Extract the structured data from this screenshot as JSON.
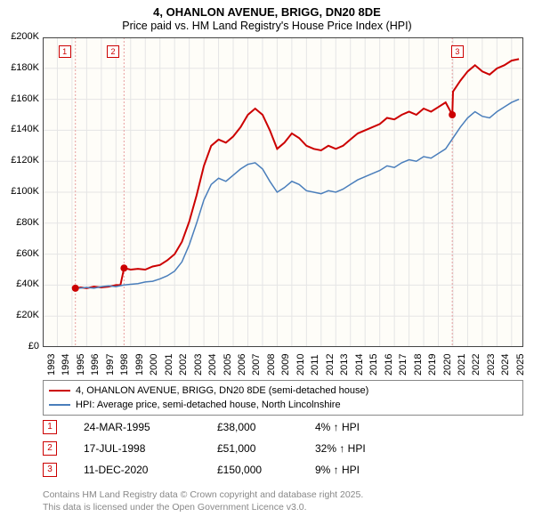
{
  "title": "4, OHANLON AVENUE, BRIGG, DN20 8DE",
  "subtitle": "Price paid vs. HM Land Registry's House Price Index (HPI)",
  "chart": {
    "type": "line",
    "background_color": "#fefdf8",
    "grid_color": "#e5e5e5",
    "axis_color": "#444444",
    "xlim": [
      1993,
      2025.8
    ],
    "ylim": [
      0,
      200000
    ],
    "ytick_step": 20000,
    "yticks": [
      "£0",
      "£20K",
      "£40K",
      "£60K",
      "£80K",
      "£100K",
      "£120K",
      "£140K",
      "£160K",
      "£180K",
      "£200K"
    ],
    "xticks": [
      1993,
      1994,
      1995,
      1996,
      1997,
      1998,
      1999,
      2000,
      2001,
      2002,
      2003,
      2004,
      2005,
      2006,
      2007,
      2008,
      2009,
      2010,
      2011,
      2012,
      2013,
      2014,
      2015,
      2016,
      2017,
      2018,
      2019,
      2020,
      2021,
      2022,
      2023,
      2024,
      2025
    ],
    "series": [
      {
        "name": "property",
        "label": "4, OHANLON AVENUE, BRIGG, DN20 8DE (semi-detached house)",
        "color": "#cc0000",
        "line_width": 2,
        "data": [
          [
            1995.23,
            38000
          ],
          [
            1995.6,
            38500
          ],
          [
            1996,
            38000
          ],
          [
            1996.5,
            39000
          ],
          [
            1997,
            38500
          ],
          [
            1997.5,
            39000
          ],
          [
            1998,
            40000
          ],
          [
            1998.3,
            40000
          ],
          [
            1998.55,
            51000
          ],
          [
            1999,
            50000
          ],
          [
            1999.5,
            50500
          ],
          [
            2000,
            50000
          ],
          [
            2000.5,
            52000
          ],
          [
            2001,
            53000
          ],
          [
            2001.5,
            56000
          ],
          [
            2002,
            60000
          ],
          [
            2002.5,
            68000
          ],
          [
            2003,
            81000
          ],
          [
            2003.5,
            98000
          ],
          [
            2004,
            117000
          ],
          [
            2004.5,
            130000
          ],
          [
            2005,
            134000
          ],
          [
            2005.5,
            132000
          ],
          [
            2006,
            136000
          ],
          [
            2006.5,
            142000
          ],
          [
            2007,
            150000
          ],
          [
            2007.5,
            154000
          ],
          [
            2008,
            150000
          ],
          [
            2008.5,
            140000
          ],
          [
            2009,
            128000
          ],
          [
            2009.5,
            132000
          ],
          [
            2010,
            138000
          ],
          [
            2010.5,
            135000
          ],
          [
            2011,
            130000
          ],
          [
            2011.5,
            128000
          ],
          [
            2012,
            127000
          ],
          [
            2012.5,
            130000
          ],
          [
            2013,
            128000
          ],
          [
            2013.5,
            130000
          ],
          [
            2014,
            134000
          ],
          [
            2014.5,
            138000
          ],
          [
            2015,
            140000
          ],
          [
            2015.5,
            142000
          ],
          [
            2016,
            144000
          ],
          [
            2016.5,
            148000
          ],
          [
            2017,
            147000
          ],
          [
            2017.5,
            150000
          ],
          [
            2018,
            152000
          ],
          [
            2018.5,
            150000
          ],
          [
            2019,
            154000
          ],
          [
            2019.5,
            152000
          ],
          [
            2020,
            155000
          ],
          [
            2020.5,
            158000
          ],
          [
            2020.95,
            150000
          ],
          [
            2021,
            165000
          ],
          [
            2021.5,
            172000
          ],
          [
            2022,
            178000
          ],
          [
            2022.5,
            182000
          ],
          [
            2023,
            178000
          ],
          [
            2023.5,
            176000
          ],
          [
            2024,
            180000
          ],
          [
            2024.5,
            182000
          ],
          [
            2025,
            185000
          ],
          [
            2025.5,
            186000
          ]
        ]
      },
      {
        "name": "hpi",
        "label": "HPI: Average price, semi-detached house, North Lincolnshire",
        "color": "#4a7ebb",
        "line_width": 1.5,
        "data": [
          [
            1995,
            38500
          ],
          [
            1995.5,
            38000
          ],
          [
            1996,
            38500
          ],
          [
            1996.5,
            38000
          ],
          [
            1997,
            39000
          ],
          [
            1997.5,
            39500
          ],
          [
            1998,
            39000
          ],
          [
            1998.5,
            40000
          ],
          [
            1999,
            40500
          ],
          [
            1999.5,
            41000
          ],
          [
            2000,
            42000
          ],
          [
            2000.5,
            42500
          ],
          [
            2001,
            44000
          ],
          [
            2001.5,
            46000
          ],
          [
            2002,
            49000
          ],
          [
            2002.5,
            55000
          ],
          [
            2003,
            66000
          ],
          [
            2003.5,
            80000
          ],
          [
            2004,
            95000
          ],
          [
            2004.5,
            105000
          ],
          [
            2005,
            109000
          ],
          [
            2005.5,
            107000
          ],
          [
            2006,
            111000
          ],
          [
            2006.5,
            115000
          ],
          [
            2007,
            118000
          ],
          [
            2007.5,
            119000
          ],
          [
            2008,
            115000
          ],
          [
            2008.5,
            107000
          ],
          [
            2009,
            100000
          ],
          [
            2009.5,
            103000
          ],
          [
            2010,
            107000
          ],
          [
            2010.5,
            105000
          ],
          [
            2011,
            101000
          ],
          [
            2011.5,
            100000
          ],
          [
            2012,
            99000
          ],
          [
            2012.5,
            101000
          ],
          [
            2013,
            100000
          ],
          [
            2013.5,
            102000
          ],
          [
            2014,
            105000
          ],
          [
            2014.5,
            108000
          ],
          [
            2015,
            110000
          ],
          [
            2015.5,
            112000
          ],
          [
            2016,
            114000
          ],
          [
            2016.5,
            117000
          ],
          [
            2017,
            116000
          ],
          [
            2017.5,
            119000
          ],
          [
            2018,
            121000
          ],
          [
            2018.5,
            120000
          ],
          [
            2019,
            123000
          ],
          [
            2019.5,
            122000
          ],
          [
            2020,
            125000
          ],
          [
            2020.5,
            128000
          ],
          [
            2021,
            135000
          ],
          [
            2021.5,
            142000
          ],
          [
            2022,
            148000
          ],
          [
            2022.5,
            152000
          ],
          [
            2023,
            149000
          ],
          [
            2023.5,
            148000
          ],
          [
            2024,
            152000
          ],
          [
            2024.5,
            155000
          ],
          [
            2025,
            158000
          ],
          [
            2025.5,
            160000
          ]
        ]
      }
    ],
    "markers": [
      {
        "n": "1",
        "x": 1995.23,
        "y": 38000,
        "badge_x": 1994.5,
        "badge_y": 195000
      },
      {
        "n": "2",
        "x": 1998.55,
        "y": 51000,
        "badge_x": 1997.8,
        "badge_y": 195000
      },
      {
        "n": "3",
        "x": 2020.95,
        "y": 150000,
        "badge_x": 2021.3,
        "badge_y": 195000
      }
    ],
    "marker_color": "#cc0000",
    "marker_line_color": "#e8a0a0",
    "legend_border": "#888888"
  },
  "transactions": [
    {
      "n": "1",
      "date": "24-MAR-1995",
      "price": "£38,000",
      "pct": "4% ↑ HPI"
    },
    {
      "n": "2",
      "date": "17-JUL-1998",
      "price": "£51,000",
      "pct": "32% ↑ HPI"
    },
    {
      "n": "3",
      "date": "11-DEC-2020",
      "price": "£150,000",
      "pct": "9% ↑ HPI"
    }
  ],
  "footer": {
    "line1": "Contains HM Land Registry data © Crown copyright and database right 2025.",
    "line2": "This data is licensed under the Open Government Licence v3.0."
  }
}
